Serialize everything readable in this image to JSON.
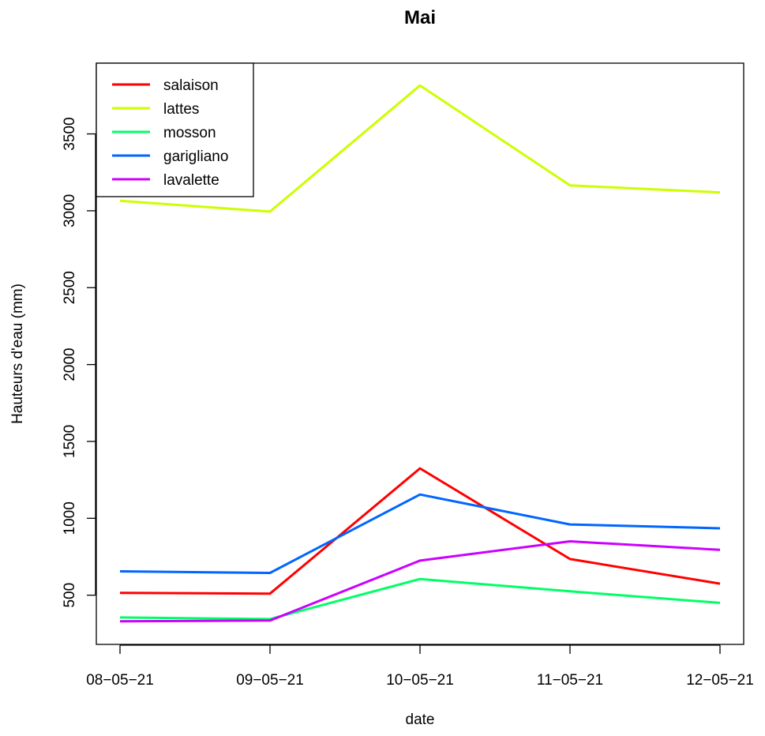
{
  "chart_data": {
    "type": "line",
    "title": "Mai",
    "xlabel": "date",
    "ylabel": "Hauteurs d'eau (mm)",
    "categories": [
      "08−05−21",
      "09−05−21",
      "10−05−21",
      "11−05−21",
      "12−05−21"
    ],
    "yticks": [
      500,
      1000,
      1500,
      2000,
      2500,
      3000,
      3500
    ],
    "ylim": [
      180,
      3960
    ],
    "grid": false,
    "legend_position": "top-left",
    "series": [
      {
        "name": "salaison",
        "color": "#ff0000",
        "values": [
          515,
          510,
          1325,
          735,
          575
        ]
      },
      {
        "name": "lattes",
        "color": "#ccff00",
        "values": [
          3065,
          2995,
          3815,
          3165,
          3120
        ]
      },
      {
        "name": "mosson",
        "color": "#00ff66",
        "values": [
          355,
          345,
          605,
          525,
          450
        ]
      },
      {
        "name": "garigliano",
        "color": "#0066ff",
        "values": [
          655,
          645,
          1155,
          960,
          935
        ]
      },
      {
        "name": "lavalette",
        "color": "#cc00ff",
        "values": [
          330,
          335,
          725,
          850,
          795
        ]
      }
    ]
  }
}
